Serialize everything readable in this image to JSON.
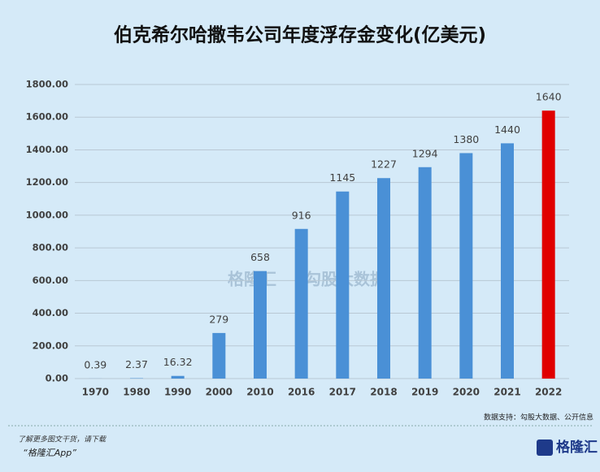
{
  "chart_data": {
    "type": "bar",
    "title": "伯克希尔哈撒韦公司年度浮存金变化(亿美元)",
    "categories": [
      "1970",
      "1980",
      "1990",
      "2000",
      "2010",
      "2016",
      "2017",
      "2018",
      "2019",
      "2020",
      "2021",
      "2022"
    ],
    "values": [
      0.39,
      2.37,
      16.32,
      279,
      658,
      916,
      1145,
      1227,
      1294,
      1380,
      1440,
      1640
    ],
    "colors": [
      "#4a90d6",
      "#4a90d6",
      "#4a90d6",
      "#4a90d6",
      "#4a90d6",
      "#4a90d6",
      "#4a90d6",
      "#4a90d6",
      "#4a90d6",
      "#4a90d6",
      "#4a90d6",
      "#e00000"
    ],
    "ylim": [
      0,
      1800
    ],
    "yticks": [
      {
        "value": 0,
        "label": "0.00"
      },
      {
        "value": 200,
        "label": "200.00"
      },
      {
        "value": 400,
        "label": "400.00"
      },
      {
        "value": 600,
        "label": "600.00"
      },
      {
        "value": 800,
        "label": "800.00"
      },
      {
        "value": 1000,
        "label": "1000.00"
      },
      {
        "value": 1200,
        "label": "1200.00"
      },
      {
        "value": 1400,
        "label": "1400.00"
      },
      {
        "value": 1600,
        "label": "1600.00"
      },
      {
        "value": 1800,
        "label": "1800.00"
      }
    ],
    "grid": true,
    "source": "数据支持：勾股大数据、公开信息"
  },
  "watermark": {
    "left": "格隆汇",
    "right": "勾股大数据"
  },
  "footer": {
    "line1": "了解更多图文干货，请下载",
    "line2": "“格隆汇App”",
    "logo": "格隆汇"
  }
}
